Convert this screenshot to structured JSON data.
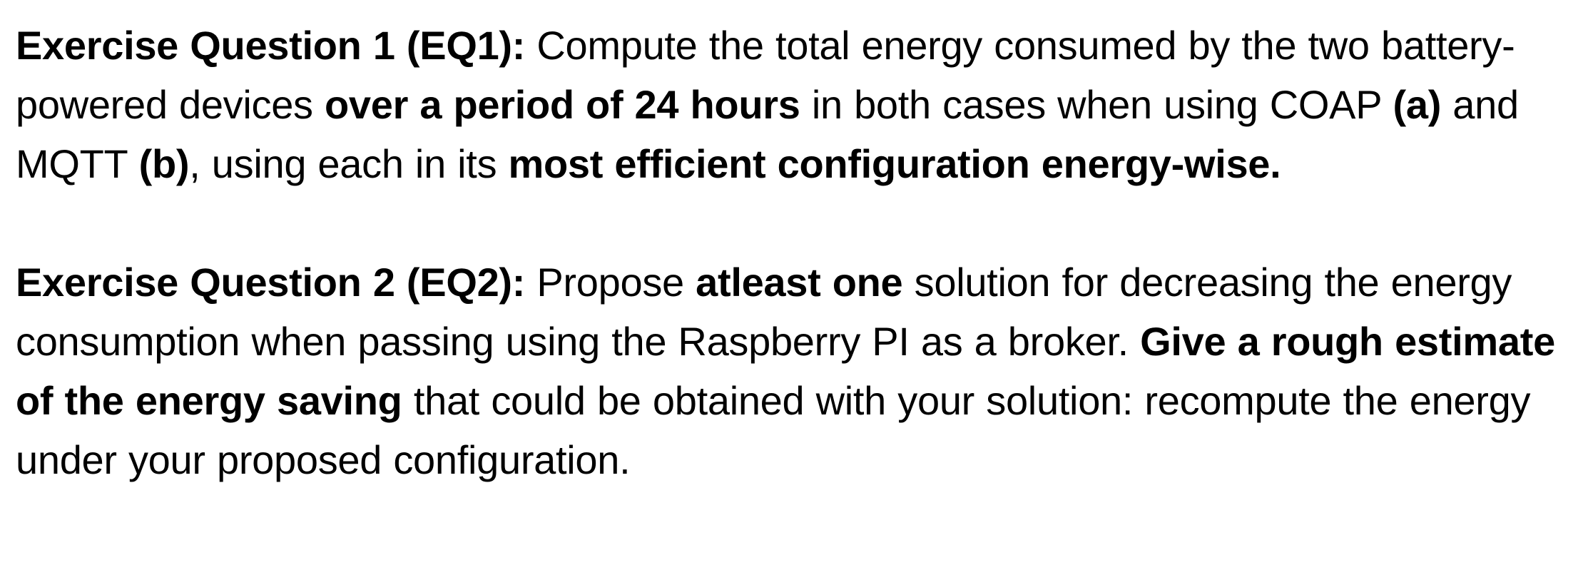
{
  "exercises": [
    {
      "heading": "Exercise Question 1 (EQ1):",
      "parts": [
        {
          "text": " Compute the total energy consumed by the two battery-powered devices ",
          "bold": false
        },
        {
          "text": "over a period of 24 hours",
          "bold": true
        },
        {
          "text": " in both cases when using COAP ",
          "bold": false
        },
        {
          "text": "(a)",
          "bold": true
        },
        {
          "text": " and MQTT ",
          "bold": false
        },
        {
          "text": "(b)",
          "bold": true
        },
        {
          "text": ", using each in its ",
          "bold": false
        },
        {
          "text": "most efficient configuration energy-wise.",
          "bold": true
        }
      ]
    },
    {
      "heading": "Exercise Question 2 (EQ2):",
      "parts": [
        {
          "text": " Propose ",
          "bold": false
        },
        {
          "text": "atleast one",
          "bold": true
        },
        {
          "text": " solution for decreasing the energy consumption when passing using the Raspberry PI as a broker. ",
          "bold": false
        },
        {
          "text": "Give a rough estimate of the energy saving",
          "bold": true
        },
        {
          "text": " that could be obtained with your solution: recompute the energy under your proposed configuration.",
          "bold": false
        }
      ]
    }
  ]
}
